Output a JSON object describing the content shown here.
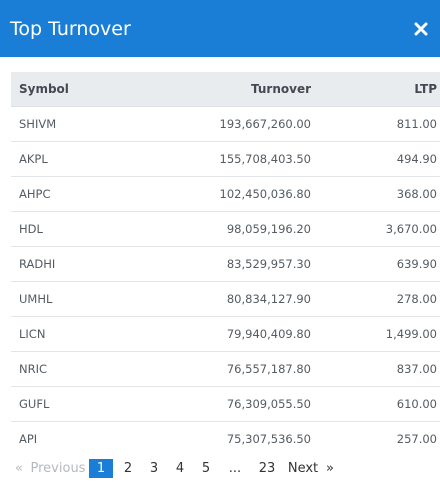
{
  "modal": {
    "title": "Top Turnover",
    "close_icon": "close-icon",
    "accent_color": "#1a7ed6"
  },
  "table": {
    "headers": {
      "symbol": "Symbol",
      "turnover": "Turnover",
      "ltp": "LTP"
    },
    "rows": [
      {
        "symbol": "SHIVM",
        "turnover": "193,667,260.00",
        "ltp": "811.00"
      },
      {
        "symbol": "AKPL",
        "turnover": "155,708,403.50",
        "ltp": "494.90"
      },
      {
        "symbol": "AHPC",
        "turnover": "102,450,036.80",
        "ltp": "368.00"
      },
      {
        "symbol": "HDL",
        "turnover": "98,059,196.20",
        "ltp": "3,670.00"
      },
      {
        "symbol": "RADHI",
        "turnover": "83,529,957.30",
        "ltp": "639.90"
      },
      {
        "symbol": "UMHL",
        "turnover": "80,834,127.90",
        "ltp": "278.00"
      },
      {
        "symbol": "LICN",
        "turnover": "79,940,409.80",
        "ltp": "1,499.00"
      },
      {
        "symbol": "NRIC",
        "turnover": "76,557,187.80",
        "ltp": "837.00"
      },
      {
        "symbol": "GUFL",
        "turnover": "76,309,055.50",
        "ltp": "610.00"
      },
      {
        "symbol": "API",
        "turnover": "75,307,536.50",
        "ltp": "257.00"
      }
    ]
  },
  "pagination": {
    "prev_glyph": "«",
    "prev_label": "Previous",
    "pages": [
      "1",
      "2",
      "3",
      "4",
      "5",
      "...",
      "23"
    ],
    "active_page": "1",
    "next_label": "Next",
    "next_glyph": "»"
  }
}
